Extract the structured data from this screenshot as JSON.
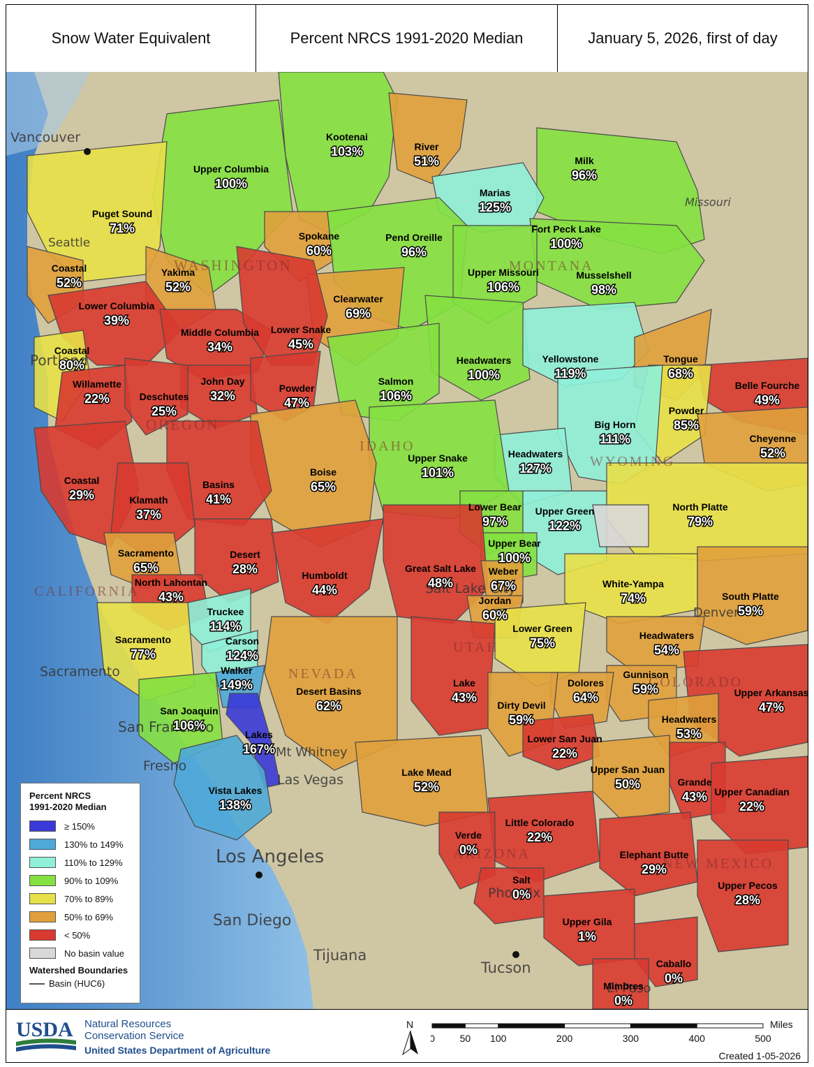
{
  "header": {
    "title": "Snow Water Equivalent",
    "metric": "Percent NRCS 1991-2020 Median",
    "date": "January 5, 2026, first of day"
  },
  "colors": {
    "ge150": "#3a3ad8",
    "p130_149": "#4ea8d8",
    "p110_129": "#8ef0d8",
    "p90_109": "#84e040",
    "p70_89": "#e8e048",
    "p50_69": "#e0a03c",
    "lt50": "#d83a30",
    "none": "#d8d8d8"
  },
  "places": {
    "vancouver": "Vancouver",
    "seattle": "Seattle",
    "portland": "Portland",
    "sacramento": "Sacramento",
    "san_francisco": "San Francisco",
    "fresno": "Fresno",
    "mt_whitney": "Mt Whitney",
    "las_vegas": "Las Vegas",
    "los_angeles": "Los Angeles",
    "san_diego": "San Diego",
    "tijuana": "Tijuana",
    "tucson": "Tucson",
    "phoenix": "Phoenix",
    "el_paso": "El Paso",
    "salt_lake_city": "Salt Lake City",
    "denver": "Denver",
    "missouri": "Missouri"
  },
  "states": {
    "washington": "WASHINGTON",
    "oregon": "OREGON",
    "idaho": "IDAHO",
    "montana": "MONTANA",
    "wyoming": "WYOMING",
    "california": "CALIFORNIA",
    "nevada": "NEVADA",
    "utah": "UTAH",
    "colorado": "COLORADO",
    "arizona": "ARIZONA",
    "new_mexico": "NEW MEXICO"
  },
  "basins": [
    {
      "name": "Kootenai",
      "value": "103%",
      "category": "p90_109"
    },
    {
      "name": "River",
      "value": "51%",
      "category": "p50_69"
    },
    {
      "name": "Upper Columbia",
      "value": "100%",
      "category": "p90_109"
    },
    {
      "name": "Milk",
      "value": "96%",
      "category": "p90_109"
    },
    {
      "name": "Marias",
      "value": "125%",
      "category": "p110_129"
    },
    {
      "name": "Puget Sound",
      "value": "71%",
      "category": "p70_89"
    },
    {
      "name": "Spokane",
      "value": "60%",
      "category": "p50_69"
    },
    {
      "name": "Pend Oreille",
      "value": "96%",
      "category": "p90_109"
    },
    {
      "name": "Fort Peck Lake",
      "value": "100%",
      "category": "p90_109"
    },
    {
      "name": "Coastal",
      "value": "52%",
      "category": "p50_69"
    },
    {
      "name": "Yakima",
      "value": "52%",
      "category": "p50_69"
    },
    {
      "name": "Upper Missouri",
      "value": "106%",
      "category": "p90_109"
    },
    {
      "name": "Musselshell",
      "value": "98%",
      "category": "p90_109"
    },
    {
      "name": "Lower Columbia",
      "value": "39%",
      "category": "lt50"
    },
    {
      "name": "Clearwater",
      "value": "69%",
      "category": "p50_69"
    },
    {
      "name": "Middle Columbia",
      "value": "34%",
      "category": "lt50"
    },
    {
      "name": "Lower Snake",
      "value": "45%",
      "category": "lt50"
    },
    {
      "name": "Coastal",
      "value": "80%",
      "category": "p70_89"
    },
    {
      "name": "Headwaters",
      "value": "100%",
      "category": "p90_109"
    },
    {
      "name": "Yellowstone",
      "value": "119%",
      "category": "p110_129"
    },
    {
      "name": "Tongue",
      "value": "68%",
      "category": "p50_69"
    },
    {
      "name": "Willamette",
      "value": "22%",
      "category": "lt50"
    },
    {
      "name": "John Day",
      "value": "32%",
      "category": "lt50"
    },
    {
      "name": "Powder",
      "value": "47%",
      "category": "lt50"
    },
    {
      "name": "Salmon",
      "value": "106%",
      "category": "p90_109"
    },
    {
      "name": "Belle Fourche",
      "value": "49%",
      "category": "lt50"
    },
    {
      "name": "Deschutes",
      "value": "25%",
      "category": "lt50"
    },
    {
      "name": "Powder",
      "value": "85%",
      "category": "p70_89"
    },
    {
      "name": "Big Horn",
      "value": "111%",
      "category": "p110_129"
    },
    {
      "name": "Cheyenne",
      "value": "52%",
      "category": "p50_69"
    },
    {
      "name": "Headwaters",
      "value": "127%",
      "category": "p110_129"
    },
    {
      "name": "Upper Snake",
      "value": "101%",
      "category": "p90_109"
    },
    {
      "name": "Boise",
      "value": "65%",
      "category": "p50_69"
    },
    {
      "name": "Coastal",
      "value": "29%",
      "category": "lt50"
    },
    {
      "name": "Basins",
      "value": "41%",
      "category": "lt50"
    },
    {
      "name": "Klamath",
      "value": "37%",
      "category": "lt50"
    },
    {
      "name": "Lower Bear",
      "value": "97%",
      "category": "p90_109"
    },
    {
      "name": "Upper Green",
      "value": "122%",
      "category": "p110_129"
    },
    {
      "name": "North Platte",
      "value": "79%",
      "category": "p70_89"
    },
    {
      "name": "Upper Bear",
      "value": "100%",
      "category": "p90_109"
    },
    {
      "name": "Sacramento",
      "value": "65%",
      "category": "p50_69"
    },
    {
      "name": "Desert",
      "value": "28%",
      "category": "lt50"
    },
    {
      "name": "Humboldt",
      "value": "44%",
      "category": "lt50"
    },
    {
      "name": "Great Salt Lake",
      "value": "48%",
      "category": "lt50"
    },
    {
      "name": "Weber",
      "value": "67%",
      "category": "p50_69"
    },
    {
      "name": "North Lahontan",
      "value": "43%",
      "category": "lt50"
    },
    {
      "name": "White-Yampa",
      "value": "74%",
      "category": "p70_89"
    },
    {
      "name": "South Platte",
      "value": "59%",
      "category": "p50_69"
    },
    {
      "name": "Jordan",
      "value": "60%",
      "category": "p50_69"
    },
    {
      "name": "Truckee",
      "value": "114%",
      "category": "p110_129"
    },
    {
      "name": "Lower Green",
      "value": "75%",
      "category": "p70_89"
    },
    {
      "name": "Headwaters",
      "value": "54%",
      "category": "p50_69"
    },
    {
      "name": "Carson",
      "value": "124%",
      "category": "p110_129"
    },
    {
      "name": "Sacramento",
      "value": "77%",
      "category": "p70_89"
    },
    {
      "name": "Walker",
      "value": "149%",
      "category": "p130_149"
    },
    {
      "name": "Gunnison",
      "value": "59%",
      "category": "p50_69"
    },
    {
      "name": "Desert Basins",
      "value": "62%",
      "category": "p50_69"
    },
    {
      "name": "Lake",
      "value": "43%",
      "category": "lt50"
    },
    {
      "name": "Dolores",
      "value": "64%",
      "category": "p50_69"
    },
    {
      "name": "Upper Arkansas",
      "value": "47%",
      "category": "lt50"
    },
    {
      "name": "San Joaquin",
      "value": "106%",
      "category": "p90_109"
    },
    {
      "name": "Dirty Devil",
      "value": "59%",
      "category": "p50_69"
    },
    {
      "name": "Headwaters",
      "value": "53%",
      "category": "p50_69"
    },
    {
      "name": "Lakes",
      "value": "167%",
      "category": "ge150"
    },
    {
      "name": "Lower San Juan",
      "value": "22%",
      "category": "lt50"
    },
    {
      "name": "Lake Mead",
      "value": "52%",
      "category": "p50_69"
    },
    {
      "name": "Upper San Juan",
      "value": "50%",
      "category": "p50_69"
    },
    {
      "name": "Grande",
      "value": "43%",
      "category": "lt50"
    },
    {
      "name": "Upper Canadian",
      "value": "22%",
      "category": "lt50"
    },
    {
      "name": "Vista Lakes",
      "value": "138%",
      "category": "p130_149"
    },
    {
      "name": "Little Colorado",
      "value": "22%",
      "category": "lt50"
    },
    {
      "name": "Verde",
      "value": "0%",
      "category": "lt50"
    },
    {
      "name": "Elephant Butte",
      "value": "29%",
      "category": "lt50"
    },
    {
      "name": "Salt",
      "value": "0%",
      "category": "lt50"
    },
    {
      "name": "Upper Pecos",
      "value": "28%",
      "category": "lt50"
    },
    {
      "name": "Upper Gila",
      "value": "1%",
      "category": "lt50"
    },
    {
      "name": "Caballo",
      "value": "0%",
      "category": "lt50"
    },
    {
      "name": "Mimbres",
      "value": "0%",
      "category": "lt50"
    }
  ],
  "legend": {
    "title_line1": "Percent NRCS",
    "title_line2": "1991-2020 Median",
    "items": [
      {
        "label": "≥ 150%",
        "category": "ge150"
      },
      {
        "label": "130% to 149%",
        "category": "p130_149"
      },
      {
        "label": "110% to 129%",
        "category": "p110_129"
      },
      {
        "label": "90% to 109%",
        "category": "p90_109"
      },
      {
        "label": "70% to 89%",
        "category": "p70_89"
      },
      {
        "label": "50% to 69%",
        "category": "p50_69"
      },
      {
        "label": "< 50%",
        "category": "lt50"
      },
      {
        "label": "No basin value",
        "category": "none"
      }
    ],
    "boundaries_title": "Watershed Boundaries",
    "boundaries_item": "Basin (HUC6)"
  },
  "footer": {
    "logo_text": "USDA",
    "agency_line1": "Natural Resources",
    "agency_line2": "Conservation Service",
    "department": "United States Department of Agriculture",
    "north": "N",
    "scale_unit": "Miles",
    "scale_ticks": [
      "0",
      "50",
      "100",
      "200",
      "300",
      "400",
      "500"
    ],
    "created": "Created 1-05-2026"
  }
}
